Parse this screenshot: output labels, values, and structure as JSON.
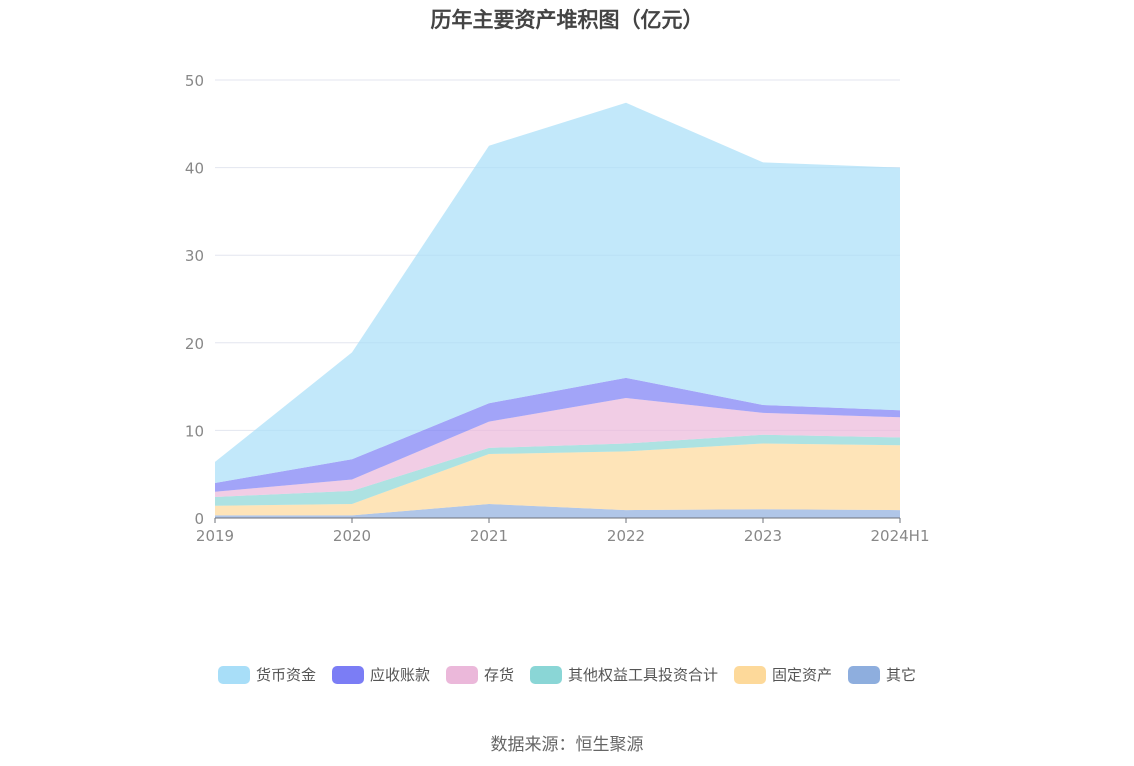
{
  "chart_data": {
    "type": "area",
    "stacked": true,
    "title": "历年主要资产堆积图（亿元）",
    "categories": [
      "2019",
      "2020",
      "2021",
      "2022",
      "2023",
      "2024H1"
    ],
    "ylim": [
      0,
      50
    ],
    "yticks": [
      0,
      10,
      20,
      30,
      40,
      50
    ],
    "grid": true,
    "legend_position": "bottom",
    "series": [
      {
        "name": "其它",
        "color": "#8eaede",
        "values": [
          0.3,
          0.3,
          1.6,
          0.9,
          1.0,
          0.9
        ]
      },
      {
        "name": "固定资产",
        "color": "#fdd99a",
        "values": [
          1.1,
          1.3,
          5.7,
          6.7,
          7.5,
          7.4
        ]
      },
      {
        "name": "其他权益工具投资合计",
        "color": "#8ad6d6",
        "values": [
          1.0,
          1.5,
          0.7,
          0.9,
          1.0,
          0.9
        ]
      },
      {
        "name": "存货",
        "color": "#ebb8da",
        "values": [
          0.6,
          1.3,
          3.0,
          5.2,
          2.5,
          2.3
        ]
      },
      {
        "name": "应收账款",
        "color": "#7b7df5",
        "values": [
          1.0,
          2.3,
          2.1,
          2.3,
          0.9,
          0.8
        ]
      },
      {
        "name": "货币资金",
        "color": "#a8def8",
        "values": [
          2.4,
          12.2,
          29.4,
          31.4,
          27.7,
          27.7
        ]
      }
    ],
    "legend_order": [
      "货币资金",
      "应收账款",
      "存货",
      "其他权益工具投资合计",
      "固定资产",
      "其它"
    ],
    "source": "数据来源：恒生聚源"
  }
}
